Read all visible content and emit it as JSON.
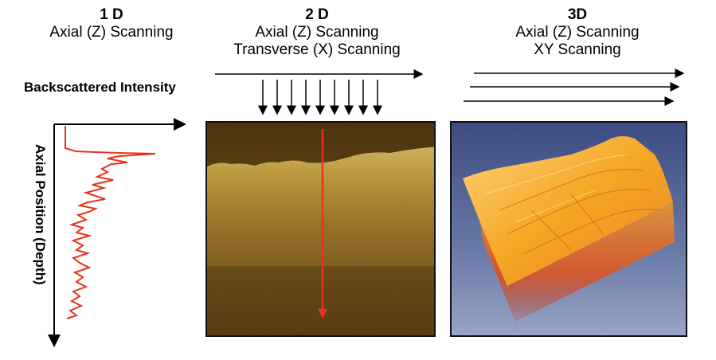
{
  "columns": [
    {
      "title": "1 D",
      "lines": [
        "Axial (Z) Scanning"
      ]
    },
    {
      "title": "2 D",
      "lines": [
        "Axial (Z) Scanning",
        "Transverse (X) Scanning"
      ]
    },
    {
      "title": "3D",
      "lines": [
        "Axial (Z) Scanning",
        "XY Scanning"
      ]
    }
  ],
  "labels": {
    "x_axis": "Backscattered Intensity",
    "y_axis": "Axial Position (Depth)"
  },
  "colors": {
    "profile_line": "#e8321e",
    "scan_line": "#e8321e",
    "bscan_tissue": "#c8a030",
    "bscan_background": "#4a2c08",
    "volume_tissue": "#f5a623",
    "volume_background": "#5a6a9a"
  }
}
